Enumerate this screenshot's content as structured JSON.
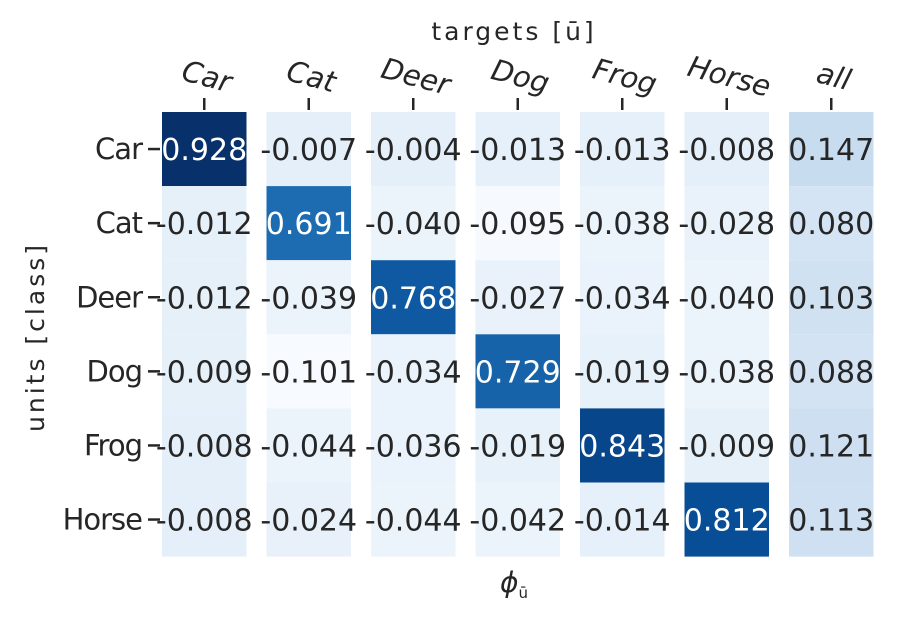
{
  "chart_data": {
    "type": "heatmap",
    "title": "targets [ū]",
    "xlabel": "ϕ",
    "xlabel_sub": "ū",
    "ylabel": "units [class]",
    "x_categories": [
      "Car",
      "Cat",
      "Deer",
      "Dog",
      "Frog",
      "Horse",
      "all"
    ],
    "y_categories": [
      "Car",
      "Cat",
      "Deer",
      "Dog",
      "Frog",
      "Horse"
    ],
    "values": [
      [
        0.928,
        -0.007,
        -0.004,
        -0.013,
        -0.013,
        -0.008,
        0.147
      ],
      [
        -0.012,
        0.691,
        -0.04,
        -0.095,
        -0.038,
        -0.028,
        0.08
      ],
      [
        -0.012,
        -0.039,
        0.768,
        -0.027,
        -0.034,
        -0.04,
        0.103
      ],
      [
        -0.009,
        -0.101,
        -0.034,
        0.729,
        -0.019,
        -0.038,
        0.088
      ],
      [
        -0.008,
        -0.044,
        -0.036,
        -0.019,
        0.843,
        -0.009,
        0.121
      ],
      [
        -0.008,
        -0.024,
        -0.044,
        -0.042,
        -0.014,
        0.812,
        0.113
      ]
    ],
    "colormap": "Blues",
    "vmin": -0.101,
    "vmax": 0.928,
    "x_tick_position": "top",
    "grid": false,
    "legend": "none"
  }
}
